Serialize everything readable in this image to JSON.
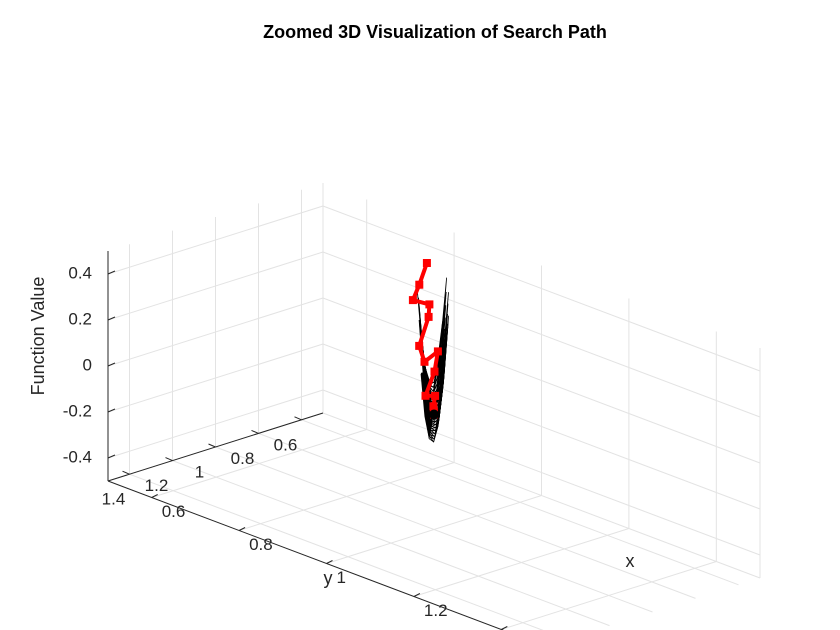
{
  "chart_data": {
    "type": "surface3d",
    "title": "Zoomed 3D Visualization of Search Path",
    "xlabel": "x",
    "ylabel": "y",
    "zlabel": "Function Value",
    "xlim": [
      0.5,
      1.5
    ],
    "ylim": [
      0.5,
      1.5
    ],
    "zlim": [
      -0.5,
      0.5
    ],
    "x_ticks": [
      0.6,
      0.8,
      1,
      1.2,
      1.4
    ],
    "x_tick_labels": [
      "0.6",
      "0.8",
      "1",
      "1.2",
      "1.4"
    ],
    "y_ticks": [
      0.6,
      0.8,
      1,
      1.2,
      1.4
    ],
    "y_tick_labels": [
      "0.6",
      "0.8",
      "1",
      "1.2",
      "1.4"
    ],
    "z_ticks": [
      -0.4,
      -0.2,
      0,
      0.2,
      0.4
    ],
    "z_tick_labels": [
      "-0.4",
      "-0.2",
      "0",
      "0.2",
      "0.4"
    ],
    "grid": true,
    "surface": {
      "function": "rosenbrock",
      "x_range": [
        0.9,
        1.1
      ],
      "y_range": [
        0.55,
        1.45
      ],
      "edge_color": "#000000",
      "face_color": "#ffffff"
    },
    "path": {
      "color": "#ff0000",
      "points": [
        {
          "x": 0.842,
          "y": 0.712,
          "z": 0.46
        },
        {
          "x": 0.86,
          "y": 0.784,
          "z": 0.4
        },
        {
          "x": 0.866,
          "y": 0.826,
          "z": 0.35
        },
        {
          "x": 0.89,
          "y": 0.798,
          "z": 0.34
        },
        {
          "x": 0.9,
          "y": 0.822,
          "z": 0.3
        },
        {
          "x": 0.91,
          "y": 0.886,
          "z": 0.2
        },
        {
          "x": 0.93,
          "y": 0.902,
          "z": 0.15
        },
        {
          "x": 0.94,
          "y": 0.86,
          "z": 0.19
        },
        {
          "x": 0.95,
          "y": 0.896,
          "z": 0.12
        },
        {
          "x": 0.96,
          "y": 0.958,
          "z": 0.04
        },
        {
          "x": 0.97,
          "y": 0.934,
          "z": 0.04
        },
        {
          "x": 0.98,
          "y": 0.962,
          "z": 0.01
        },
        {
          "x": 0.99,
          "y": 0.98,
          "z": 0.0
        },
        {
          "x": 1.0,
          "y": 1.0,
          "z": 0.0
        }
      ]
    },
    "minimum": {
      "x": 1.0,
      "y": 1.0,
      "z": 0.0,
      "color": "#000000"
    }
  }
}
